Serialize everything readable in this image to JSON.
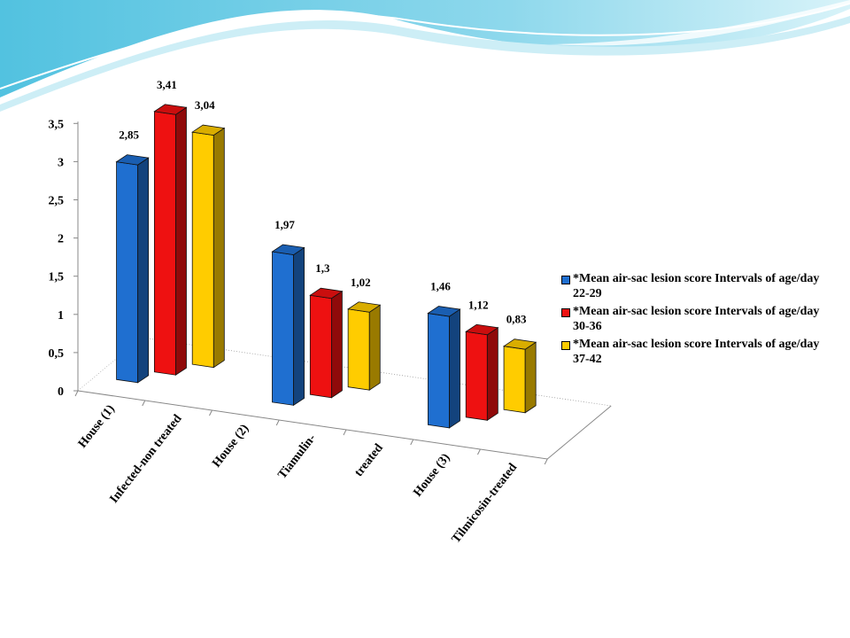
{
  "colors": {
    "wave_dark": "#5bc8e2",
    "wave_light": "#b7e8f3",
    "series_1": "#1f6fd0",
    "series_2": "#ee1111",
    "series_3": "#ffcc00"
  },
  "chart_data": {
    "type": "bar",
    "style": "3d-clustered",
    "title": "",
    "xlabel": "",
    "ylabel": "",
    "ylim": [
      0,
      3.5
    ],
    "y_ticks": [
      "0",
      "0,5",
      "1",
      "1,5",
      "2",
      "2,5",
      "3",
      "3,5"
    ],
    "x_tick_labels": [
      "House (1)",
      "Infected-non treated",
      "House (2)",
      "Tiamulin-",
      "treated",
      "House (3)",
      "Tilmicosin-treated"
    ],
    "categories": [
      "House (1)",
      "House (2)",
      "House (3)"
    ],
    "series": [
      {
        "name": "*Mean air-sac lesion score   Intervals of age/day  22-29",
        "values": [
          2.85,
          1.97,
          1.46
        ],
        "labels": [
          "2,85",
          "1,97",
          "1,46"
        ]
      },
      {
        "name": "*Mean air-sac lesion score   Intervals of age/day  30-36",
        "values": [
          3.41,
          1.3,
          1.12
        ],
        "labels": [
          "3,41",
          "1,3",
          "1,12"
        ]
      },
      {
        "name": "*Mean air-sac lesion score   Intervals of age/day  37-42",
        "values": [
          3.04,
          1.02,
          0.83
        ],
        "labels": [
          "3,04",
          "1,02",
          "0,83"
        ]
      }
    ],
    "legend": "right",
    "grid": false
  }
}
